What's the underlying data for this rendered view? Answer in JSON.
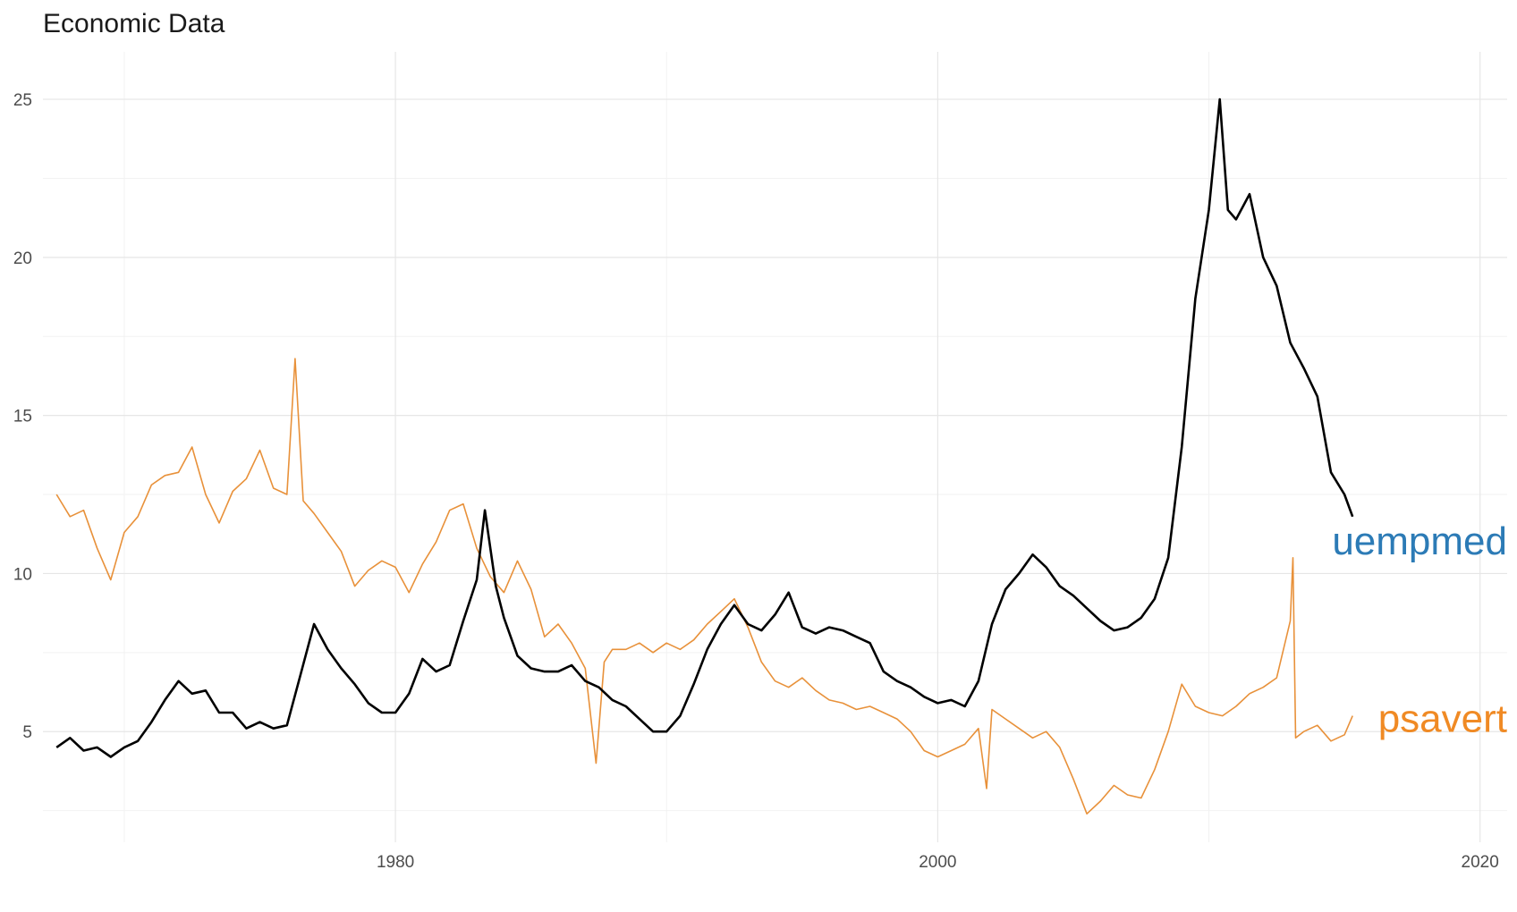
{
  "chart_data": {
    "type": "line",
    "title": "Economic Data",
    "xlabel": "",
    "ylabel": "",
    "xlim": [
      1967.0,
      2021.0
    ],
    "ylim": [
      1.5,
      26.5
    ],
    "x_ticks": [
      1980,
      2000,
      2020
    ],
    "x_tick_labels": [
      "1980",
      "2000",
      "2020"
    ],
    "y_ticks": [
      5,
      10,
      15,
      20,
      25
    ],
    "y_tick_labels": [
      "5",
      "10",
      "15",
      "20",
      "25"
    ],
    "grid": true,
    "legend": "direct labels at line ends",
    "series": [
      {
        "name": "uempmed",
        "color": "#000000",
        "label_color": "#2c7bb6",
        "points": [
          [
            1967.5,
            4.5
          ],
          [
            1968.0,
            4.8
          ],
          [
            1968.5,
            4.4
          ],
          [
            1969.0,
            4.5
          ],
          [
            1969.5,
            4.2
          ],
          [
            1970.0,
            4.5
          ],
          [
            1970.5,
            4.7
          ],
          [
            1971.0,
            5.3
          ],
          [
            1971.5,
            6.0
          ],
          [
            1972.0,
            6.6
          ],
          [
            1972.5,
            6.2
          ],
          [
            1973.0,
            6.3
          ],
          [
            1973.5,
            5.6
          ],
          [
            1974.0,
            5.6
          ],
          [
            1974.5,
            5.1
          ],
          [
            1975.0,
            5.3
          ],
          [
            1975.5,
            5.1
          ],
          [
            1976.0,
            5.2
          ],
          [
            1976.5,
            6.8
          ],
          [
            1977.0,
            8.4
          ],
          [
            1977.5,
            7.6
          ],
          [
            1978.0,
            7.0
          ],
          [
            1978.5,
            6.5
          ],
          [
            1979.0,
            5.9
          ],
          [
            1979.5,
            5.6
          ],
          [
            1980.0,
            5.6
          ],
          [
            1980.5,
            6.2
          ],
          [
            1981.0,
            7.3
          ],
          [
            1981.5,
            6.9
          ],
          [
            1982.0,
            7.1
          ],
          [
            1982.5,
            8.5
          ],
          [
            1983.0,
            9.8
          ],
          [
            1983.3,
            12.0
          ],
          [
            1983.7,
            9.6
          ],
          [
            1984.0,
            8.6
          ],
          [
            1984.5,
            7.4
          ],
          [
            1985.0,
            7.0
          ],
          [
            1985.5,
            6.9
          ],
          [
            1986.0,
            6.9
          ],
          [
            1986.5,
            7.1
          ],
          [
            1987.0,
            6.6
          ],
          [
            1987.5,
            6.4
          ],
          [
            1988.0,
            6.0
          ],
          [
            1988.5,
            5.8
          ],
          [
            1989.0,
            5.4
          ],
          [
            1989.5,
            5.0
          ],
          [
            1990.0,
            5.0
          ],
          [
            1990.5,
            5.5
          ],
          [
            1991.0,
            6.5
          ],
          [
            1991.5,
            7.6
          ],
          [
            1992.0,
            8.4
          ],
          [
            1992.5,
            9.0
          ],
          [
            1993.0,
            8.4
          ],
          [
            1993.5,
            8.2
          ],
          [
            1994.0,
            8.7
          ],
          [
            1994.5,
            9.4
          ],
          [
            1995.0,
            8.3
          ],
          [
            1995.5,
            8.1
          ],
          [
            1996.0,
            8.3
          ],
          [
            1996.5,
            8.2
          ],
          [
            1997.0,
            8.0
          ],
          [
            1997.5,
            7.8
          ],
          [
            1998.0,
            6.9
          ],
          [
            1998.5,
            6.6
          ],
          [
            1999.0,
            6.4
          ],
          [
            1999.5,
            6.1
          ],
          [
            2000.0,
            5.9
          ],
          [
            2000.5,
            6.0
          ],
          [
            2001.0,
            5.8
          ],
          [
            2001.5,
            6.6
          ],
          [
            2002.0,
            8.4
          ],
          [
            2002.5,
            9.5
          ],
          [
            2003.0,
            10.0
          ],
          [
            2003.5,
            10.6
          ],
          [
            2004.0,
            10.2
          ],
          [
            2004.5,
            9.6
          ],
          [
            2005.0,
            9.3
          ],
          [
            2005.5,
            8.9
          ],
          [
            2006.0,
            8.5
          ],
          [
            2006.5,
            8.2
          ],
          [
            2007.0,
            8.3
          ],
          [
            2007.5,
            8.6
          ],
          [
            2008.0,
            9.2
          ],
          [
            2008.5,
            10.5
          ],
          [
            2009.0,
            14.0
          ],
          [
            2009.5,
            18.7
          ],
          [
            2010.0,
            21.5
          ],
          [
            2010.4,
            25.0
          ],
          [
            2010.7,
            21.5
          ],
          [
            2011.0,
            21.2
          ],
          [
            2011.5,
            22.0
          ],
          [
            2012.0,
            20.0
          ],
          [
            2012.5,
            19.1
          ],
          [
            2013.0,
            17.3
          ],
          [
            2013.5,
            16.5
          ],
          [
            2014.0,
            15.6
          ],
          [
            2014.5,
            13.2
          ],
          [
            2015.0,
            12.5
          ],
          [
            2015.3,
            11.8
          ]
        ]
      },
      {
        "name": "psavert",
        "color": "#e8913a",
        "label_color": "#f08a24",
        "points": [
          [
            1967.5,
            12.5
          ],
          [
            1968.0,
            11.8
          ],
          [
            1968.5,
            12.0
          ],
          [
            1969.0,
            10.8
          ],
          [
            1969.5,
            9.8
          ],
          [
            1970.0,
            11.3
          ],
          [
            1970.5,
            11.8
          ],
          [
            1971.0,
            12.8
          ],
          [
            1971.5,
            13.1
          ],
          [
            1972.0,
            13.2
          ],
          [
            1972.5,
            14.0
          ],
          [
            1973.0,
            12.5
          ],
          [
            1973.5,
            11.6
          ],
          [
            1974.0,
            12.6
          ],
          [
            1974.5,
            13.0
          ],
          [
            1975.0,
            13.9
          ],
          [
            1975.5,
            12.7
          ],
          [
            1976.0,
            12.5
          ],
          [
            1976.3,
            16.8
          ],
          [
            1976.6,
            12.3
          ],
          [
            1977.0,
            11.9
          ],
          [
            1977.5,
            11.3
          ],
          [
            1978.0,
            10.7
          ],
          [
            1978.5,
            9.6
          ],
          [
            1979.0,
            10.1
          ],
          [
            1979.5,
            10.4
          ],
          [
            1980.0,
            10.2
          ],
          [
            1980.5,
            9.4
          ],
          [
            1981.0,
            10.3
          ],
          [
            1981.5,
            11.0
          ],
          [
            1982.0,
            12.0
          ],
          [
            1982.5,
            12.2
          ],
          [
            1983.0,
            10.8
          ],
          [
            1983.5,
            9.9
          ],
          [
            1984.0,
            9.4
          ],
          [
            1984.5,
            10.4
          ],
          [
            1985.0,
            9.5
          ],
          [
            1985.5,
            8.0
          ],
          [
            1986.0,
            8.4
          ],
          [
            1986.5,
            7.8
          ],
          [
            1987.0,
            7.0
          ],
          [
            1987.4,
            4.0
          ],
          [
            1987.7,
            7.2
          ],
          [
            1988.0,
            7.6
          ],
          [
            1988.5,
            7.6
          ],
          [
            1989.0,
            7.8
          ],
          [
            1989.5,
            7.5
          ],
          [
            1990.0,
            7.8
          ],
          [
            1990.5,
            7.6
          ],
          [
            1991.0,
            7.9
          ],
          [
            1991.5,
            8.4
          ],
          [
            1992.0,
            8.8
          ],
          [
            1992.5,
            9.2
          ],
          [
            1993.0,
            8.3
          ],
          [
            1993.5,
            7.2
          ],
          [
            1994.0,
            6.6
          ],
          [
            1994.5,
            6.4
          ],
          [
            1995.0,
            6.7
          ],
          [
            1995.5,
            6.3
          ],
          [
            1996.0,
            6.0
          ],
          [
            1996.5,
            5.9
          ],
          [
            1997.0,
            5.7
          ],
          [
            1997.5,
            5.8
          ],
          [
            1998.0,
            5.6
          ],
          [
            1998.5,
            5.4
          ],
          [
            1999.0,
            5.0
          ],
          [
            1999.5,
            4.4
          ],
          [
            2000.0,
            4.2
          ],
          [
            2000.5,
            4.4
          ],
          [
            2001.0,
            4.6
          ],
          [
            2001.5,
            5.1
          ],
          [
            2001.8,
            3.2
          ],
          [
            2002.0,
            5.7
          ],
          [
            2002.5,
            5.4
          ],
          [
            2003.0,
            5.1
          ],
          [
            2003.5,
            4.8
          ],
          [
            2004.0,
            5.0
          ],
          [
            2004.5,
            4.5
          ],
          [
            2005.0,
            3.5
          ],
          [
            2005.5,
            2.4
          ],
          [
            2006.0,
            2.8
          ],
          [
            2006.5,
            3.3
          ],
          [
            2007.0,
            3.0
          ],
          [
            2007.5,
            2.9
          ],
          [
            2008.0,
            3.8
          ],
          [
            2008.5,
            5.0
          ],
          [
            2009.0,
            6.5
          ],
          [
            2009.5,
            5.8
          ],
          [
            2010.0,
            5.6
          ],
          [
            2010.5,
            5.5
          ],
          [
            2011.0,
            5.8
          ],
          [
            2011.5,
            6.2
          ],
          [
            2012.0,
            6.4
          ],
          [
            2012.5,
            6.7
          ],
          [
            2013.0,
            8.5
          ],
          [
            2013.1,
            10.5
          ],
          [
            2013.2,
            4.8
          ],
          [
            2013.5,
            5.0
          ],
          [
            2014.0,
            5.2
          ],
          [
            2014.5,
            4.7
          ],
          [
            2015.0,
            4.9
          ],
          [
            2015.3,
            5.5
          ]
        ]
      }
    ]
  }
}
